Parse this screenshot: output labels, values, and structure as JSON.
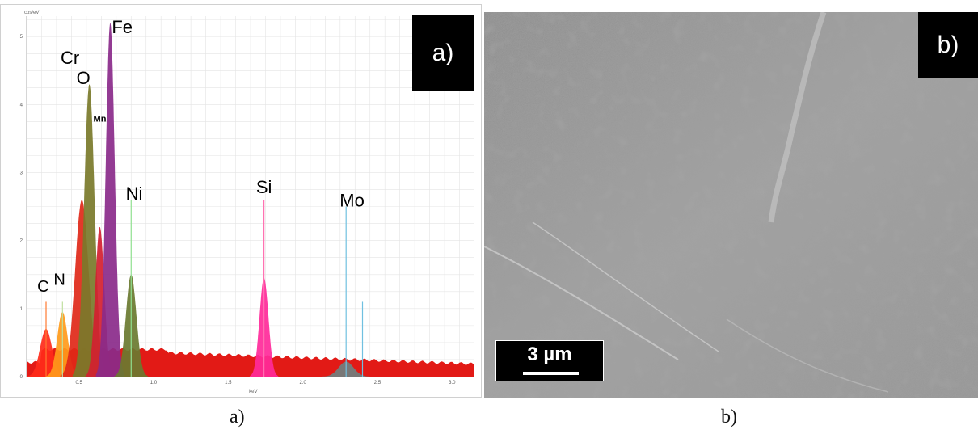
{
  "panel_a": {
    "label": "a)",
    "unit_y": "cps/eV",
    "unit_x": "keV"
  },
  "panel_b": {
    "label": "b)",
    "scale_bar": "3 µm"
  },
  "captions": [
    "a)",
    "b)"
  ],
  "chart_data": {
    "type": "area",
    "title": "",
    "xlabel": "keV",
    "ylabel": "cps/eV",
    "xlim": [
      0.15,
      3.15
    ],
    "ylim": [
      0,
      5.3
    ],
    "xticks": [
      "0.5",
      "1.0",
      "1.5",
      "2.0",
      "2.5",
      "3.0"
    ],
    "yticks": [
      "0",
      "1",
      "2",
      "3",
      "4",
      "5"
    ],
    "grid": true,
    "background_level": 0.35,
    "peaks": [
      {
        "element": "C",
        "energy": 0.28,
        "height": 0.7,
        "color": "#ff2a1a"
      },
      {
        "element": "N",
        "energy": 0.39,
        "height": 0.95,
        "color": "#ff9a1a"
      },
      {
        "element": "O",
        "energy": 0.52,
        "height": 2.6,
        "color": "#e02818"
      },
      {
        "element": "Cr",
        "energy": 0.57,
        "height": 4.3,
        "color": "#7a7a2a"
      },
      {
        "element": "Mn",
        "energy": 0.64,
        "height": 2.2,
        "color": "#d42030"
      },
      {
        "element": "Fe",
        "energy": 0.71,
        "height": 5.2,
        "color": "#8a2a8a"
      },
      {
        "element": "Ni",
        "energy": 0.85,
        "height": 1.5,
        "color": "#6a7a30"
      },
      {
        "element": "Si",
        "energy": 1.74,
        "height": 1.45,
        "color": "#ff2a9a"
      },
      {
        "element": "Mo",
        "energy": 2.29,
        "height": 0.22,
        "color": "#708080"
      }
    ],
    "marker_lines": [
      {
        "element": "C",
        "energy": 0.28,
        "height": 1.1,
        "color": "#ff7a30"
      },
      {
        "element": "N",
        "energy": 0.39,
        "height": 1.1,
        "color": "#c0e0a0"
      },
      {
        "element": "Ni",
        "energy": 0.85,
        "height": 2.6,
        "color": "#90e090"
      },
      {
        "element": "Si",
        "energy": 1.74,
        "height": 2.6,
        "color": "#ff70b0"
      },
      {
        "element": "Mo",
        "energy": 2.29,
        "height": 2.5,
        "color": "#70c0e0"
      },
      {
        "element": "",
        "energy": 2.4,
        "height": 1.1,
        "color": "#70c0e0"
      }
    ],
    "element_labels": [
      "C",
      "N",
      "O",
      "Cr",
      "Mn",
      "Fe",
      "Ni",
      "Si",
      "Mo"
    ]
  }
}
